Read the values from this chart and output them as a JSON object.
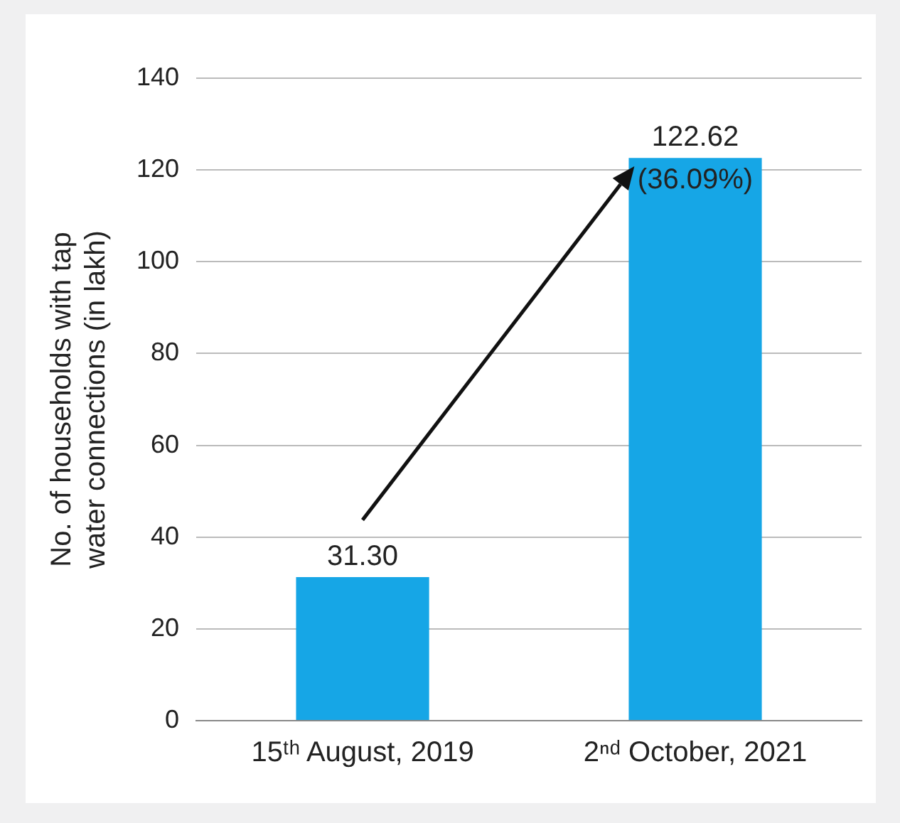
{
  "chart_data": {
    "type": "bar",
    "ylabel": "No. of households with tap water connections (in lakh)",
    "categories": [
      "15ᵗʰ August, 2019",
      "2ⁿᵈ October, 2021"
    ],
    "values": [
      31.3,
      122.62
    ],
    "color": "#16a6e6",
    "value_labels": [
      "31.30",
      "122.62"
    ],
    "annotations": [
      {
        "text": "(36.09%)",
        "x": "2ⁿᵈ October, 2021",
        "y": 122.62
      }
    ],
    "ylim": [
      0,
      140
    ],
    "yticks": [
      0,
      20,
      40,
      60,
      80,
      100,
      120,
      140
    ],
    "grid": "y",
    "legend": false
  }
}
